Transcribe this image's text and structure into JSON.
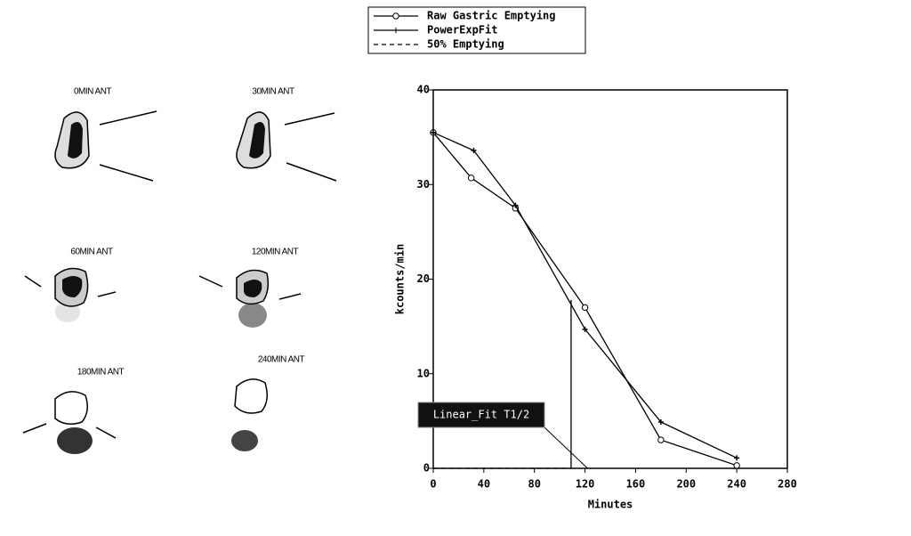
{
  "images": [
    {
      "label": "0MIN ANT"
    },
    {
      "label": "30MIN ANT"
    },
    {
      "label": "60MIN ANT"
    },
    {
      "label": "120MIN ANT"
    },
    {
      "label": "180MIN ANT"
    },
    {
      "label": "240MIN ANT"
    }
  ],
  "chart_data": {
    "type": "line",
    "x_label": "Minutes",
    "y_label": "kcounts/min",
    "xlim": [
      0,
      280
    ],
    "xticks": [
      0,
      40,
      80,
      120,
      160,
      200,
      240,
      280
    ],
    "ylim": [
      0,
      40
    ],
    "yticks": [
      0,
      10,
      20,
      30,
      40
    ],
    "series": [
      {
        "name": "Raw Gastric Emptying",
        "color": "#000000",
        "marker": "circle",
        "x": [
          0,
          30,
          65,
          120,
          180,
          240
        ],
        "values": [
          35.5,
          30.7,
          27.5,
          17,
          3,
          0.3
        ]
      },
      {
        "name": "PowerExpFit",
        "color": "#000000",
        "marker": "plus",
        "x": [
          0,
          32,
          65,
          120,
          180,
          240
        ],
        "values": [
          35.5,
          33.6,
          27.8,
          14.7,
          4.9,
          1.1
        ]
      },
      {
        "name": "50% Emptying",
        "color": "#000000",
        "dashed": true,
        "x": [
          0,
          109
        ],
        "values": [
          0,
          0
        ]
      }
    ],
    "t_half_marker": {
      "x": 109,
      "y": 17.8
    },
    "annotation": {
      "text": "Linear_Fit T1/2",
      "x": 122,
      "y": 0
    }
  }
}
